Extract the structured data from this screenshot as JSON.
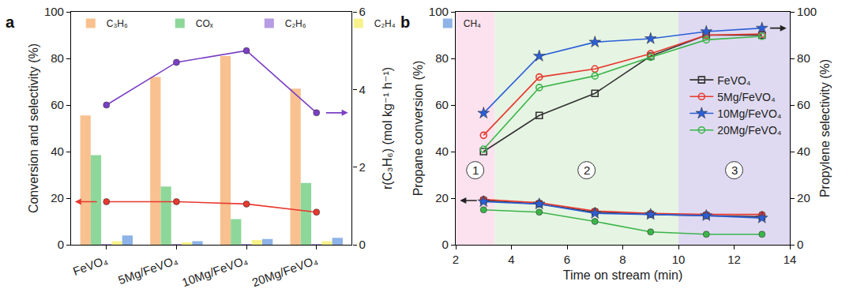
{
  "chart_data": [
    {
      "panel": "a",
      "type": "bar",
      "categories": [
        "FeVO₄",
        "5Mg/FeVO₄",
        "10Mg/FeVO₄",
        "20Mg/FeVO₄"
      ],
      "y_label": "Conversion and selectivity (%)",
      "y2_label": "r(C₃H₆) (mol kg⁻¹ h⁻¹)",
      "ylim": [
        0,
        100
      ],
      "yticks": [
        0,
        20,
        40,
        60,
        80,
        100
      ],
      "y2lim": [
        0,
        6
      ],
      "y2ticks": [
        0,
        2,
        4,
        6
      ],
      "grid": false,
      "legend": "top left",
      "series": [
        {
          "name": "C₃H₆",
          "type": "bar",
          "color": "#F9C18F",
          "values": [
            55.5,
            72,
            81,
            67
          ]
        },
        {
          "name": "COₓ",
          "type": "bar",
          "color": "#8ED79A",
          "values": [
            38.5,
            25,
            11,
            26.5
          ]
        },
        {
          "name": "C₂H₆",
          "type": "bar",
          "color": "#B79BE3",
          "values": [
            0.3,
            0.3,
            0.3,
            0.3
          ]
        },
        {
          "name": "C₂H₄",
          "type": "bar",
          "color": "#F7F28A",
          "values": [
            1.5,
            1,
            2,
            1.5
          ]
        },
        {
          "name": "CH₄",
          "type": "bar",
          "color": "#8DB3E8",
          "values": [
            4,
            1.5,
            2.5,
            3
          ]
        },
        {
          "type": "line",
          "axis": "y",
          "color": "#E8392F",
          "marker": "circle",
          "values": [
            18.5,
            18.5,
            17.5,
            14
          ]
        },
        {
          "type": "line",
          "axis": "y2",
          "color": "#7B3FC4",
          "marker": "circle",
          "values": [
            3.6,
            4.7,
            5.0,
            3.4
          ]
        }
      ]
    },
    {
      "panel": "b",
      "type": "line",
      "x": [
        3,
        5,
        7,
        9,
        11,
        13
      ],
      "x_label": "Time on stream (min)",
      "y_label": "Propane conversion (%)",
      "y2_label": "Propylene selectivity (%)",
      "xlim": [
        2,
        14
      ],
      "xticks": [
        2,
        4,
        6,
        8,
        10,
        12,
        14
      ],
      "ylim": [
        0,
        100
      ],
      "yticks": [
        0,
        20,
        40,
        60,
        80,
        100
      ],
      "y2lim": [
        0,
        100
      ],
      "y2ticks": [
        0,
        20,
        40,
        60,
        80,
        100
      ],
      "grid": false,
      "legend": "center right",
      "regions": [
        {
          "label": "1",
          "x0": 2,
          "x1": 3.4,
          "color": "#FCE2EE"
        },
        {
          "label": "2",
          "x0": 3.4,
          "x1": 10,
          "color": "#E6F4E3"
        },
        {
          "label": "3",
          "x0": 10,
          "x1": 14,
          "color": "#DFDAF1"
        }
      ],
      "series": [
        {
          "name": "FeVO₄",
          "axis": "y2",
          "color": "#333333",
          "marker": "square-open",
          "values": [
            40,
            55.5,
            65,
            81,
            90,
            90
          ]
        },
        {
          "name": "5Mg/FeVO₄",
          "axis": "y2",
          "color": "#E8392F",
          "marker": "circle-open",
          "values": [
            47,
            72,
            75.5,
            82,
            90,
            90.5
          ]
        },
        {
          "name": "10Mg/FeVO₄",
          "axis": "y2",
          "color": "#2B5FD9",
          "marker": "star",
          "values": [
            56.5,
            81,
            87,
            88.5,
            91.5,
            93
          ]
        },
        {
          "name": "20Mg/FeVO₄",
          "axis": "y2",
          "color": "#3BB54A",
          "marker": "circle-open",
          "values": [
            41,
            67.5,
            72.5,
            80.5,
            88,
            89.5
          ]
        },
        {
          "axis": "y",
          "color": "#333333",
          "marker": "square",
          "values": [
            19,
            17.5,
            14,
            13,
            12.5,
            12
          ]
        },
        {
          "axis": "y",
          "color": "#E8392F",
          "marker": "circle",
          "values": [
            19.5,
            18,
            14.5,
            13.5,
            13,
            13
          ]
        },
        {
          "axis": "y",
          "color": "#3BB54A",
          "marker": "circle",
          "values": [
            15,
            14,
            10,
            5.5,
            4.5,
            4.5
          ]
        },
        {
          "axis": "y",
          "color": "#2B5FD9",
          "marker": "star",
          "values": [
            18.5,
            17.5,
            13.5,
            13,
            12.5,
            11.5
          ]
        }
      ]
    }
  ]
}
